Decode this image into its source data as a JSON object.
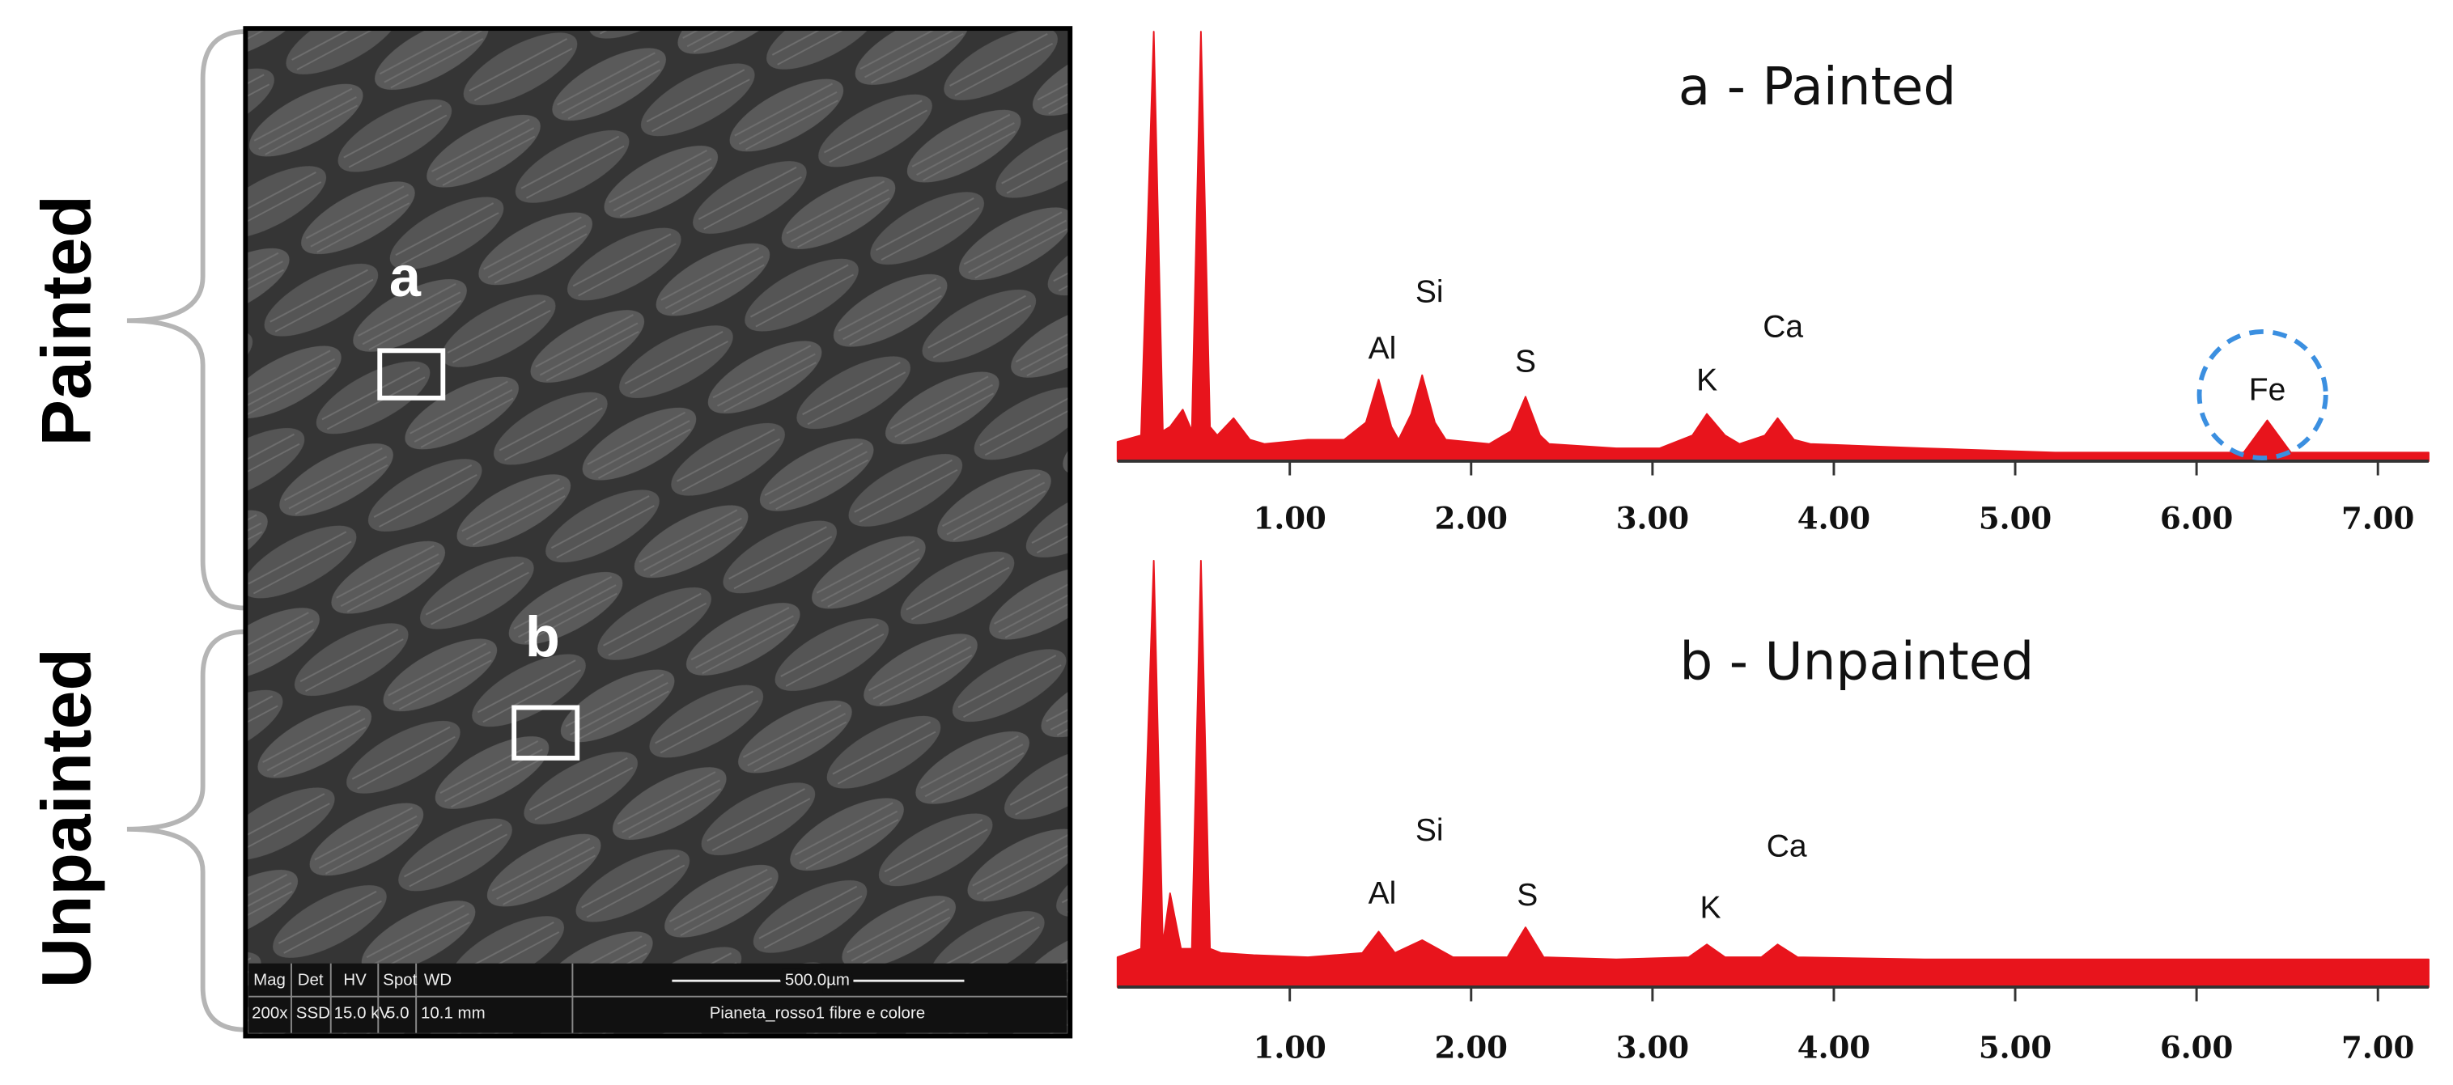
{
  "figure": {
    "side_labels": [
      "Painted",
      "Unpainted"
    ],
    "image": {
      "region_labels": [
        "a",
        "b"
      ],
      "info_bar": {
        "headers": [
          "Mag",
          "Det",
          "HV",
          "Spot",
          "WD"
        ],
        "values": [
          "200x",
          "SSD",
          "15.0 kV",
          "5.0",
          "10.1 mm"
        ],
        "scale_bar": "500.0µm",
        "caption": "Pianeta_rosso1 fibre e colore"
      }
    }
  },
  "chart_data": [
    {
      "type": "area",
      "title": "a - Painted",
      "color": "#e8141c",
      "x": [
        0.05,
        0.18,
        0.25,
        0.3,
        0.34,
        0.41,
        0.46,
        0.51,
        0.56,
        0.6,
        0.69,
        0.78,
        0.86,
        1.1,
        1.3,
        1.42,
        1.49,
        1.56,
        1.6,
        1.67,
        1.73,
        1.8,
        1.86,
        2.1,
        2.22,
        2.3,
        2.38,
        2.43,
        2.8,
        3.04,
        3.22,
        3.3,
        3.4,
        3.48,
        3.62,
        3.69,
        3.78,
        3.87,
        4.5,
        5.22,
        6.0,
        6.26,
        6.39,
        6.52,
        7.0,
        7.28
      ],
      "values": [
        4.5,
        6,
        100,
        7,
        8,
        12,
        7,
        100,
        8,
        6,
        10,
        5,
        4,
        5,
        5,
        9,
        19,
        8,
        5,
        11,
        20,
        9,
        5,
        4,
        7,
        15,
        6,
        4,
        3,
        3,
        6,
        11,
        6,
        4,
        6,
        10,
        5,
        4,
        3,
        2,
        2,
        2,
        9.5,
        2,
        2,
        2
      ],
      "xlim": [
        0.05,
        7.28
      ],
      "xticks": [
        {
          "value": 1,
          "label": "1.00"
        },
        {
          "value": 2,
          "label": "2.00"
        },
        {
          "value": 3,
          "label": "3.00"
        },
        {
          "value": 4,
          "label": "4.00"
        },
        {
          "value": 5,
          "label": "5.00"
        },
        {
          "value": 6,
          "label": "6.00"
        },
        {
          "value": 7,
          "label": "7.00"
        }
      ],
      "ylim": [
        0,
        100
      ],
      "annotations": [
        {
          "text": "Al",
          "x": 1.51
        },
        {
          "text": "Si",
          "x": 1.77
        },
        {
          "text": "S",
          "x": 2.3
        },
        {
          "text": "K",
          "x": 3.3
        },
        {
          "text": "Ca",
          "x": 3.72
        },
        {
          "text": "Fe",
          "x": 6.39
        }
      ]
    },
    {
      "type": "area",
      "title": "b - Unpainted",
      "color": "#e8141c",
      "x": [
        0.05,
        0.18,
        0.25,
        0.3,
        0.34,
        0.4,
        0.46,
        0.51,
        0.56,
        0.62,
        0.8,
        1.1,
        1.4,
        1.49,
        1.58,
        1.73,
        1.9,
        2.2,
        2.3,
        2.4,
        2.8,
        3.2,
        3.3,
        3.4,
        3.6,
        3.69,
        3.8,
        4.5,
        5.5,
        6.5,
        7.28
      ],
      "values": [
        7,
        9,
        100,
        10,
        22,
        9,
        9,
        100,
        9,
        8,
        7.5,
        7,
        8,
        13,
        8,
        11,
        7,
        7,
        14,
        7,
        6.5,
        7,
        10,
        7,
        7,
        10,
        7,
        6.5,
        6.5,
        6.5,
        6.5
      ],
      "xlim": [
        0.05,
        7.28
      ],
      "xticks": [
        {
          "value": 1,
          "label": "1.00"
        },
        {
          "value": 2,
          "label": "2.00"
        },
        {
          "value": 3,
          "label": "3.00"
        },
        {
          "value": 4,
          "label": "4.00"
        },
        {
          "value": 5,
          "label": "5.00"
        },
        {
          "value": 6,
          "label": "6.00"
        },
        {
          "value": 7,
          "label": "7.00"
        }
      ],
      "ylim": [
        0,
        100
      ],
      "annotations": [
        {
          "text": "Al",
          "x": 1.51
        },
        {
          "text": "Si",
          "x": 1.77
        },
        {
          "text": "S",
          "x": 2.31
        },
        {
          "text": "K",
          "x": 3.32
        },
        {
          "text": "Ca",
          "x": 3.74
        }
      ]
    }
  ]
}
